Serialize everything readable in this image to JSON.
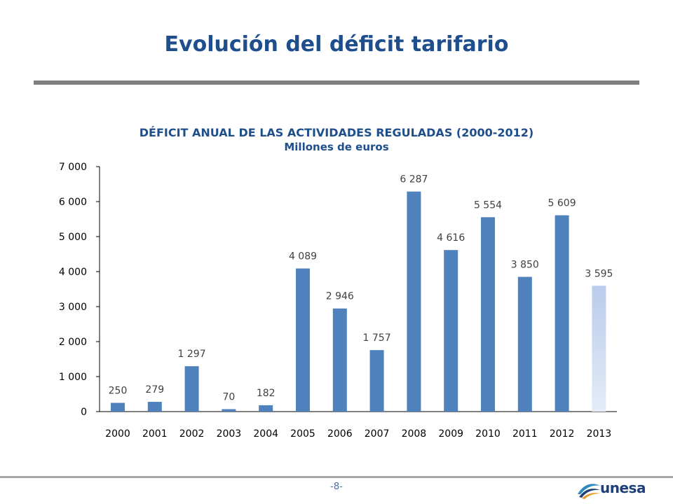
{
  "slide": {
    "title": "Evolución del déficit tarifario",
    "page_number": "-8-"
  },
  "logo": {
    "text": "unesa",
    "icon": "unesa-swoosh-icon",
    "colors": [
      "#2E8BC0",
      "#1F3F7A",
      "#E39B2D"
    ]
  },
  "colors": {
    "title": "#1F4E8C",
    "bar": "#4F81BD",
    "bar_projected_top": "#B9CCEB",
    "bar_projected_bottom": "#E4ECF8",
    "axis": "#000000",
    "rule": "#7F7F7F"
  },
  "chart_data": {
    "type": "bar",
    "title": "DÉFICIT ANUAL DE LAS ACTIVIDADES REGULADAS (2000-2012)",
    "subtitle": "Millones de euros",
    "categories": [
      "2000",
      "2001",
      "2002",
      "2003",
      "2004",
      "2005",
      "2006",
      "2007",
      "2008",
      "2009",
      "2010",
      "2011",
      "2012",
      "2013"
    ],
    "values": [
      250,
      279,
      1297,
      70,
      182,
      4089,
      2946,
      1757,
      6287,
      4616,
      5554,
      3850,
      5609,
      3595
    ],
    "value_labels": [
      "250",
      "279",
      "1 297",
      "70",
      "182",
      "4 089",
      "2 946",
      "1 757",
      "6 287",
      "4 616",
      "5 554",
      "3 850",
      "5 609",
      "3 595"
    ],
    "highlighted_category": "2013",
    "ylim": [
      0,
      7000
    ],
    "yticks": [
      0,
      1000,
      2000,
      3000,
      4000,
      5000,
      6000,
      7000
    ],
    "ytick_labels": [
      "0",
      "1 000",
      "2 000",
      "3 000",
      "4 000",
      "5 000",
      "6 000",
      "7 000"
    ],
    "grid": false,
    "legend": "none"
  }
}
